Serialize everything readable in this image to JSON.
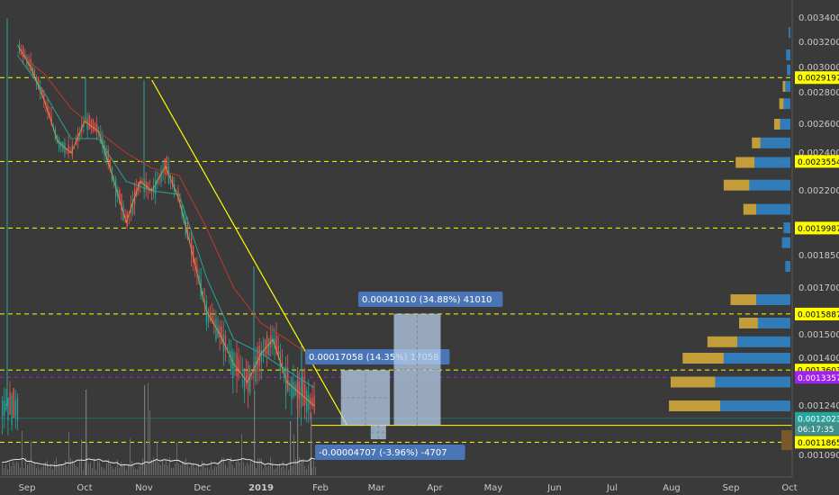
{
  "chart_data": {
    "type": "line",
    "title": "",
    "xlabel": "",
    "ylabel": "",
    "x_ticks": [
      "Sep",
      "Oct",
      "Nov",
      "Dec",
      "2019",
      "Feb",
      "Mar",
      "Apr",
      "May",
      "Jun",
      "Jul",
      "Aug",
      "Sep",
      "Oct"
    ],
    "y_ticks": [
      "0.00340000",
      "0.00320000",
      "0.00300000",
      "0.00280000",
      "0.00260000",
      "0.00240000",
      "0.00220000",
      "0.00185000",
      "0.00170000",
      "0.00150000",
      "0.00140000",
      "0.00124000",
      "0.00109000"
    ],
    "ylim": [
      0.00108,
      0.00345
    ],
    "series": [
      {
        "x": [
          "Aug 26",
          "Sep 3",
          "Sep 10",
          "Sep 17",
          "Sep 24",
          "Oct 1",
          "Oct 8",
          "Oct 15",
          "Oct 22",
          "Oct 29",
          "Nov 5",
          "Nov 12",
          "Nov 19",
          "Nov 26",
          "Dec 3",
          "Dec 10",
          "Dec 17",
          "Dec 24",
          "Dec 31",
          "Jan 7",
          "Jan 14",
          "Jan 21",
          "Jan 28"
        ],
        "values": [
          0.00318,
          0.003,
          0.00275,
          0.00248,
          0.0024,
          0.00262,
          0.00255,
          0.00228,
          0.00203,
          0.00225,
          0.0022,
          0.00233,
          0.00215,
          0.00185,
          0.0016,
          0.0015,
          0.00138,
          0.00132,
          0.00142,
          0.00148,
          0.00132,
          0.00128,
          0.00124
        ]
      },
      {
        "x": [
          "Aug 26",
          "Sep 10",
          "Sep 24",
          "Oct 8",
          "Oct 22",
          "Nov 5",
          "Nov 19",
          "Dec 3",
          "Dec 17",
          "Dec 31",
          "Jan 14",
          "Jan 28"
        ],
        "values": [
          0.0031,
          0.0028,
          0.0025,
          0.0025,
          0.00225,
          0.0022,
          0.00218,
          0.00175,
          0.00148,
          0.00142,
          0.00136,
          0.0013
        ]
      },
      {
        "x": [
          "Aug 26",
          "Sep 10",
          "Sep 24",
          "Oct 8",
          "Oct 22",
          "Nov 5",
          "Nov 19",
          "Dec 3",
          "Dec 17",
          "Dec 31",
          "Jan 14",
          "Jan 28"
        ],
        "values": [
          0.00312,
          0.00295,
          0.0027,
          0.00255,
          0.0024,
          0.00232,
          0.00228,
          0.002,
          0.0017,
          0.00155,
          0.00148,
          0.0014
        ]
      }
    ],
    "price_levels": [
      {
        "label": "0.00291975",
        "value": 0.00291975,
        "color": "#ffff00",
        "text_color": "#000000"
      },
      {
        "label": "0.00235540",
        "value": 0.0023554,
        "color": "#ffff00",
        "text_color": "#000000"
      },
      {
        "label": "0.00199876",
        "value": 0.00199876,
        "color": "#ffff00",
        "text_color": "#000000"
      },
      {
        "label": "0.00158872",
        "value": 0.00158872,
        "color": "#ffff00",
        "text_color": "#000000"
      },
      {
        "label": "0.00136030",
        "value": 0.0013603,
        "color": "#ffff00",
        "text_color": "#000000"
      },
      {
        "label": "0.00133577",
        "value": 0.00133577,
        "color": "#a020f0",
        "text_color": "#ffffff"
      },
      {
        "label": "0.00120233",
        "value": 0.00120233,
        "color": "#26a69a",
        "text_color": "#ffffff"
      },
      {
        "label": "06:17:35",
        "value": 0.00117,
        "color": "#3f8f8a",
        "text_color": "#ffffff"
      },
      {
        "label": "0.00118658",
        "value": 0.00113,
        "color": "#ffff00",
        "text_color": "#000000"
      }
    ],
    "trendline": {
      "from": {
        "x": "Nov 5",
        "y": 0.0029
      },
      "to": {
        "x": "Feb 1",
        "y": 0.00118
      }
    },
    "annotations": [
      {
        "text": "0.00017058 (14.35%) 17058",
        "base": 0.00118658,
        "top": 0.00136,
        "from": "Feb 12",
        "to": "Mar 8"
      },
      {
        "text": "0.00041010 (34.88%) 41010",
        "base": 0.00118658,
        "top": 0.00159,
        "from": "Mar 10",
        "to": "Apr 4"
      },
      {
        "text": "-0.00004707 (-3.96%) -4707",
        "base": 0.00118658,
        "top": 0.001139,
        "from": "Feb 28",
        "to": "Mar 6"
      }
    ],
    "volume_profile": [
      {
        "price": 0.00328,
        "up": 0.0,
        "down": 0.02
      },
      {
        "price": 0.0031,
        "up": 0.0,
        "down": 0.05
      },
      {
        "price": 0.00298,
        "up": 0.0,
        "down": 0.04
      },
      {
        "price": 0.00285,
        "up": 0.03,
        "down": 0.06
      },
      {
        "price": 0.00273,
        "up": 0.05,
        "down": 0.08
      },
      {
        "price": 0.0026,
        "up": 0.07,
        "down": 0.12
      },
      {
        "price": 0.00247,
        "up": 0.1,
        "down": 0.35
      },
      {
        "price": 0.00235,
        "up": 0.22,
        "down": 0.42
      },
      {
        "price": 0.00223,
        "up": 0.3,
        "down": 0.48
      },
      {
        "price": 0.0021,
        "up": 0.15,
        "down": 0.4
      },
      {
        "price": 0.002,
        "up": 0.0,
        "down": 0.08
      },
      {
        "price": 0.00192,
        "up": 0.0,
        "down": 0.1
      },
      {
        "price": 0.0018,
        "up": 0.0,
        "down": 0.06
      },
      {
        "price": 0.00165,
        "up": 0.3,
        "down": 0.4
      },
      {
        "price": 0.00155,
        "up": 0.22,
        "down": 0.38
      },
      {
        "price": 0.00147,
        "up": 0.35,
        "down": 0.62
      },
      {
        "price": 0.0014,
        "up": 0.48,
        "down": 0.78
      },
      {
        "price": 0.00132,
        "up": 0.52,
        "down": 0.88
      },
      {
        "price": 0.00124,
        "up": 0.6,
        "down": 0.82
      },
      {
        "price": 0.00115,
        "up": 0.02,
        "down": 0.05
      }
    ],
    "grid": false
  },
  "colors": {
    "background": "#3a3a3a",
    "price_line": "#ff4d4d",
    "ema_fast": "#26a69a",
    "ema_slow": "#c0392b",
    "trendline": "#ffff00",
    "box": "#b8cde8",
    "label_bg": "#4a76b8",
    "volume": "#ffffff"
  }
}
